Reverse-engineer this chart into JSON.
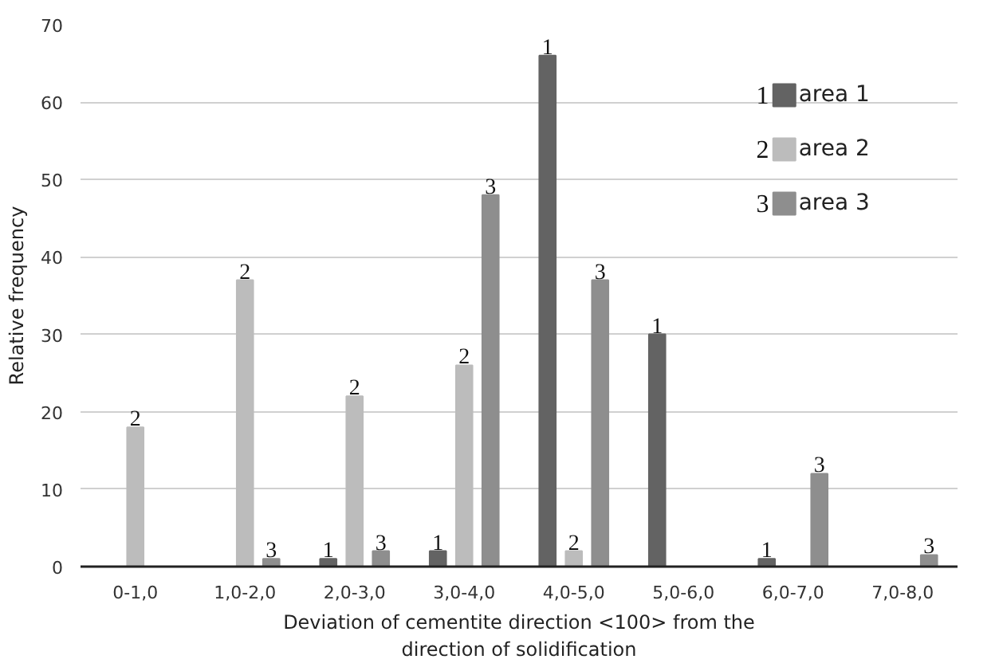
{
  "chart_data": {
    "type": "bar",
    "xlabel": "Deviation of cementite direction <100> from the\ndirection of solidification",
    "ylabel": "Relative frequency",
    "categories": [
      "0-1,0",
      "1,0-2,0",
      "2,0-3,0",
      "3,0-4,0",
      "4,0-5,0",
      "5,0-6,0",
      "6,0-7,0",
      "7,0-8,0"
    ],
    "series": [
      {
        "name": "area 1",
        "color": "#636363",
        "values": [
          0,
          0,
          1,
          2,
          66,
          30,
          1,
          0
        ]
      },
      {
        "name": "area 2",
        "color": "#bcbcbc",
        "values": [
          18,
          37,
          22,
          26,
          2,
          0,
          0,
          0
        ]
      },
      {
        "name": "area 3",
        "color": "#8e8e8e",
        "values": [
          0,
          1,
          2,
          48,
          37,
          0,
          12,
          1.5
        ]
      }
    ],
    "annotations": [
      "1",
      "2",
      "3"
    ],
    "ylim": [
      0,
      70
    ],
    "yticks": [
      0,
      10,
      20,
      30,
      40,
      50,
      60,
      70
    ],
    "grid": "y",
    "legend": "top right"
  }
}
